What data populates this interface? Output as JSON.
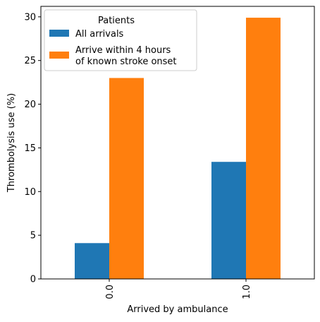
{
  "chart_data": {
    "type": "bar",
    "title": "",
    "xlabel": "Arrived by ambulance",
    "ylabel": "Thrombolysis use (%)",
    "categories": [
      "0.0",
      "1.0"
    ],
    "ylim": [
      0,
      31.2
    ],
    "yticks": [
      0,
      5,
      10,
      15,
      20,
      25,
      30
    ],
    "grid": false,
    "legend": {
      "title": "Patients",
      "placement": "upper-left"
    },
    "series": [
      {
        "name": "All arrivals",
        "color": "#1f77b4",
        "values": [
          4.1,
          13.4
        ]
      },
      {
        "name": "Arrive within 4 hours\nof known stroke onset",
        "color": "#ff7f0e",
        "values": [
          23.0,
          29.9
        ]
      }
    ]
  }
}
